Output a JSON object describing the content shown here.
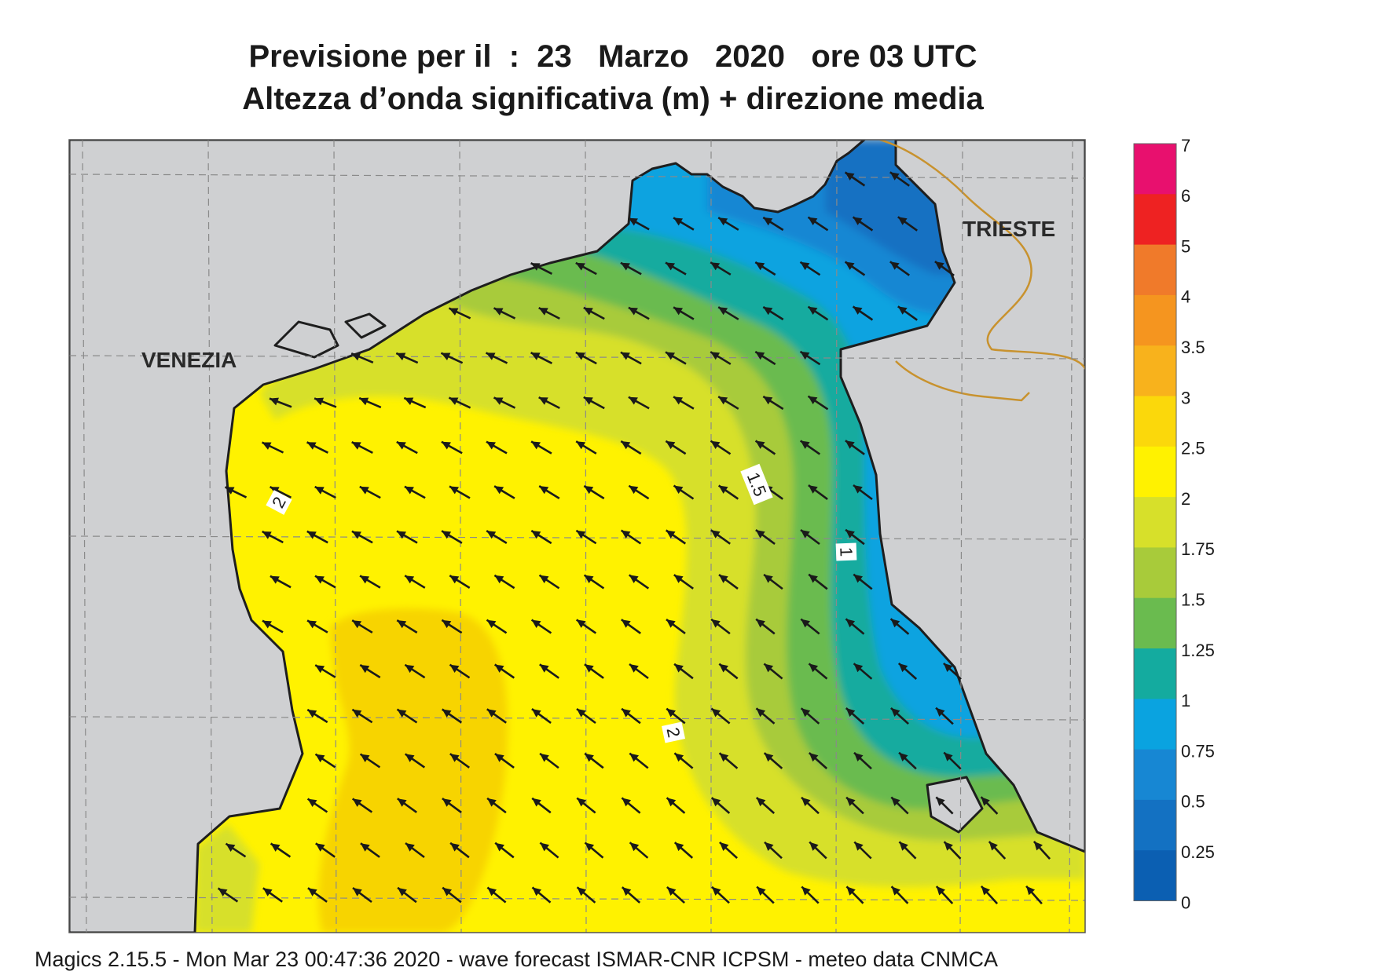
{
  "title": {
    "line1": {
      "prefix": "Previsione per il",
      "sep": ":",
      "day": "23",
      "month": "Marzo",
      "year": "2020",
      "time": "ore 03 UTC"
    },
    "line2": "Altezza d’onda significativa (m) + direzione media"
  },
  "map_labels": {
    "venezia": "VENEZIA",
    "trieste": "TRIESTE"
  },
  "contour_labels": [
    "2",
    "1.5",
    "1",
    "2"
  ],
  "legend": {
    "ticks": [
      "7",
      "6",
      "5",
      "4",
      "3.5",
      "3",
      "2.5",
      "2",
      "1.75",
      "1.5",
      "1.25",
      "1",
      "0.75",
      "0.5",
      "0.25",
      "0"
    ],
    "colors": [
      "#e8106e",
      "#ee2222",
      "#f07a2a",
      "#f5951f",
      "#f8b21c",
      "#fbd80b",
      "#fff200",
      "#d7e02a",
      "#a8cb3a",
      "#6abb4f",
      "#14ab9f",
      "#0aa3e0",
      "#1787d3",
      "#1371c2",
      "#0b5fb2"
    ]
  },
  "colors": {
    "land": "#cfd0d2",
    "coast": "#1e1e1e",
    "border": "#c8922e",
    "arrow": "#1a1a1a",
    "grid": "#8a8a8a"
  },
  "footer": "Magics 2.15.5 - Mon Mar 23 00:47:36 2020 - wave forecast  ISMAR-CNR  ICPSM - meteo data   CNMCA"
}
